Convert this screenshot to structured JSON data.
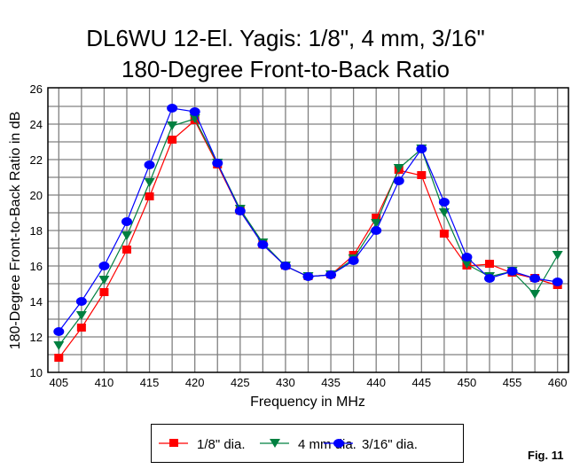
{
  "chart_data": {
    "type": "line",
    "title": [
      "DL6WU 12-El. Yagis: 1/8\", 4 mm, 3/16\"",
      "180-Degree Front-to-Back Ratio"
    ],
    "xlabel": "Frequency in MHz",
    "ylabel": "180-Degree Front-to-Back Ratio in dB",
    "xlim": [
      405,
      460
    ],
    "ylim": [
      10,
      26
    ],
    "xticks": [
      405,
      410,
      415,
      420,
      425,
      430,
      435,
      440,
      445,
      450,
      455,
      460
    ],
    "yticks": [
      10,
      12,
      14,
      16,
      18,
      20,
      22,
      24,
      26
    ],
    "grid": true,
    "legend_position": "bottom",
    "x": [
      405,
      407.5,
      410,
      412.5,
      415,
      417.5,
      420,
      422.5,
      425,
      427.5,
      430,
      432.5,
      435,
      437.5,
      440,
      442.5,
      445,
      447.5,
      450,
      452.5,
      455,
      457.5,
      460
    ],
    "series": [
      {
        "name": "1/8\" dia.",
        "color": "#ff0000",
        "marker": "square",
        "values": [
          10.8,
          12.5,
          14.5,
          16.9,
          19.9,
          23.1,
          24.2,
          21.7,
          19.1,
          17.2,
          16.0,
          15.4,
          15.5,
          16.6,
          18.7,
          21.4,
          21.1,
          17.8,
          16.0,
          16.1,
          15.6,
          15.3,
          14.9
        ]
      },
      {
        "name": "4 mm dia.",
        "color": "#008040",
        "marker": "triangle-down",
        "values": [
          11.5,
          13.2,
          15.2,
          17.7,
          20.7,
          23.9,
          24.3,
          21.8,
          19.2,
          17.3,
          16.0,
          15.4,
          15.5,
          16.4,
          18.4,
          21.5,
          22.6,
          19.0,
          16.1,
          15.4,
          15.7,
          14.4,
          16.6
        ]
      },
      {
        "name": "3/16\" dia.",
        "color": "#0000ff",
        "marker": "circle",
        "values": [
          12.3,
          14.0,
          16.0,
          18.5,
          21.7,
          24.9,
          24.7,
          21.8,
          19.1,
          17.2,
          16.0,
          15.4,
          15.5,
          16.3,
          18.0,
          20.8,
          22.6,
          19.6,
          16.5,
          15.3,
          15.7,
          15.3,
          15.1
        ]
      }
    ]
  },
  "figure_label": "Fig. 11"
}
